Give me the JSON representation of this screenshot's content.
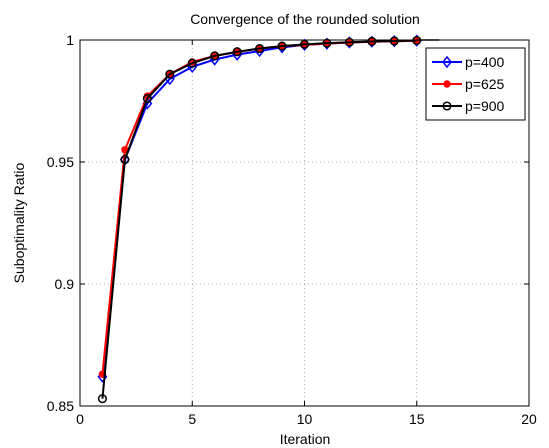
{
  "chart_data": {
    "type": "line",
    "title": "Convergence of the rounded solution",
    "xlabel": "Iteration",
    "ylabel": "Suboptimality Ratio",
    "xlim": [
      0,
      20
    ],
    "ylim": [
      0.85,
      1
    ],
    "xticks": [
      0,
      5,
      10,
      15,
      20
    ],
    "yticks": [
      0.85,
      0.9,
      0.95,
      1
    ],
    "xtick_labels": [
      "0",
      "5",
      "10",
      "15",
      "20"
    ],
    "ytick_labels": [
      "0.85",
      "0.9",
      "0.95",
      "1"
    ],
    "grid": true,
    "legend_position": "top-right",
    "x": [
      1,
      2,
      3,
      4,
      5,
      6,
      7,
      8,
      9,
      10,
      11,
      12,
      13,
      14,
      15
    ],
    "series": [
      {
        "name": "p=400",
        "color": "#0000ff",
        "marker": "diamond",
        "values": [
          0.862,
          0.951,
          0.974,
          0.984,
          0.989,
          0.992,
          0.994,
          0.9955,
          0.997,
          0.998,
          0.9985,
          0.999,
          0.9993,
          0.9995,
          0.9997
        ]
      },
      {
        "name": "p=625",
        "color": "#ff0000",
        "marker": "dot",
        "values": [
          0.863,
          0.955,
          0.977,
          0.986,
          0.991,
          0.9935,
          0.995,
          0.9965,
          0.9975,
          0.998,
          0.9985,
          0.999,
          0.9993,
          0.9995,
          0.9997
        ]
      },
      {
        "name": "p=900",
        "color": "#000000",
        "marker": "circle",
        "values": [
          0.853,
          0.951,
          0.976,
          0.986,
          0.9905,
          0.9935,
          0.9952,
          0.9965,
          0.9975,
          0.9982,
          0.9987,
          0.9991,
          0.9994,
          0.9996,
          0.9998
        ]
      }
    ],
    "reference_line": {
      "x": [
        15,
        16
      ],
      "y": [
        1,
        1
      ],
      "color": "#000000"
    }
  }
}
